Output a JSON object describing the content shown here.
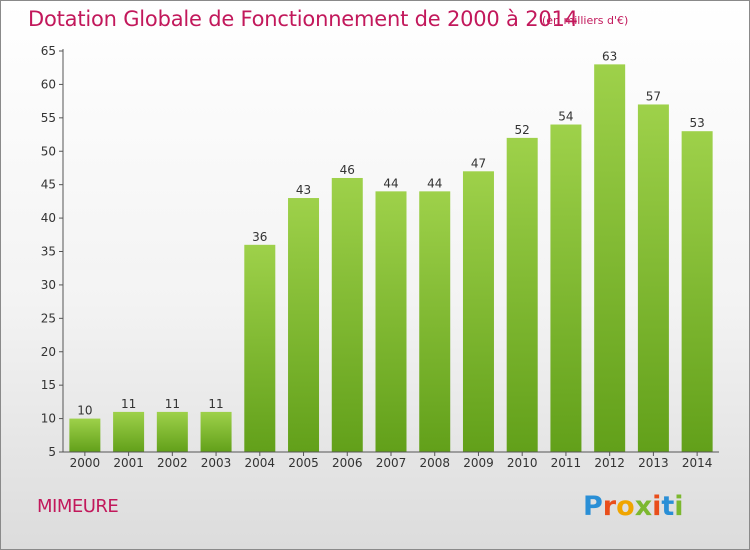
{
  "header": {
    "title": "Dotation Globale de Fonctionnement de 2000 à 2014",
    "unit": "(en milliers d'€)"
  },
  "commune": "MIMEURE",
  "logo": {
    "text": "Proxiti",
    "colors": [
      "#2a8fd6",
      "#e94e1b",
      "#f0a500",
      "#7cb82f",
      "#e94e1b",
      "#2a8fd6",
      "#7cb82f"
    ]
  },
  "chart_data": {
    "type": "bar",
    "title": "Dotation Globale de Fonctionnement de 2000 à 2014",
    "subtitle": "(en milliers d'€)",
    "xlabel": "",
    "ylabel": "",
    "categories": [
      "2000",
      "2001",
      "2002",
      "2003",
      "2004",
      "2005",
      "2006",
      "2007",
      "2008",
      "2009",
      "2010",
      "2011",
      "2012",
      "2013",
      "2014"
    ],
    "values": [
      10,
      11,
      11,
      11,
      36,
      43,
      46,
      44,
      44,
      47,
      52,
      54,
      63,
      57,
      53
    ],
    "ylim": [
      5,
      65
    ],
    "yticks": [
      5,
      10,
      15,
      20,
      25,
      30,
      35,
      40,
      45,
      50,
      55,
      60,
      65
    ],
    "grid": false,
    "colors": {
      "bar_top": "#9ed14a",
      "bar_bottom": "#62a01a",
      "axis": "#555555",
      "text": "#333333",
      "accent": "#c2185b"
    }
  }
}
